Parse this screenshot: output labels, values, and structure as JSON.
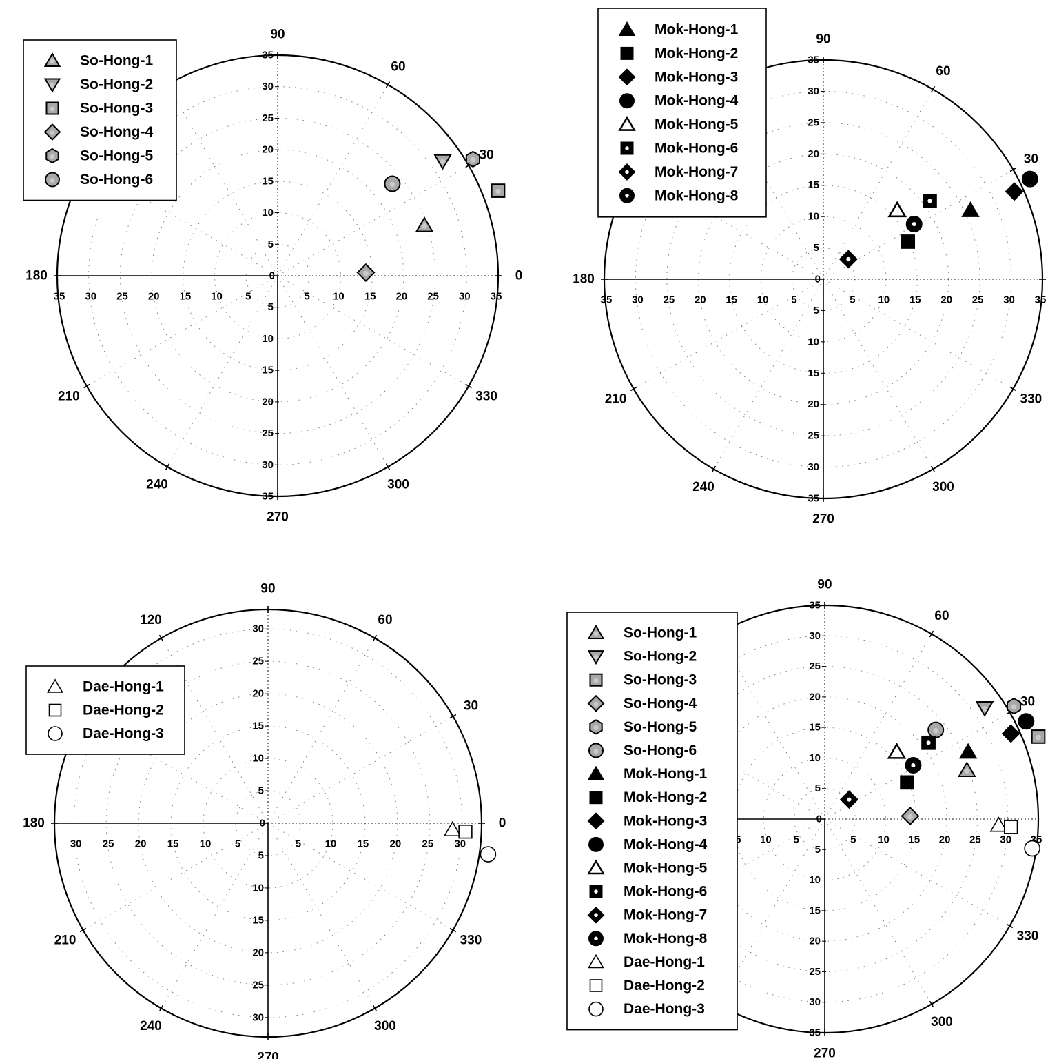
{
  "colors": {
    "ink": "#000000",
    "grey": "#a8a8a8",
    "paper": "#ffffff"
  },
  "marker_styles": {
    "So-Hong-1": {
      "shape": "triangle-up",
      "fill": "grey"
    },
    "So-Hong-2": {
      "shape": "triangle-down",
      "fill": "grey"
    },
    "So-Hong-3": {
      "shape": "square",
      "fill": "grey"
    },
    "So-Hong-4": {
      "shape": "diamond",
      "fill": "grey"
    },
    "So-Hong-5": {
      "shape": "hexagon",
      "fill": "grey"
    },
    "So-Hong-6": {
      "shape": "circle",
      "fill": "grey"
    },
    "Mok-Hong-1": {
      "shape": "triangle-up",
      "fill": "black"
    },
    "Mok-Hong-2": {
      "shape": "square",
      "fill": "black"
    },
    "Mok-Hong-3": {
      "shape": "diamond",
      "fill": "black"
    },
    "Mok-Hong-4": {
      "shape": "circle",
      "fill": "black"
    },
    "Mok-Hong-5": {
      "shape": "triangle-up",
      "fill": "outline-grey"
    },
    "Mok-Hong-6": {
      "shape": "square",
      "fill": "black-dot"
    },
    "Mok-Hong-7": {
      "shape": "diamond",
      "fill": "black-dot"
    },
    "Mok-Hong-8": {
      "shape": "circle",
      "fill": "black-dot"
    },
    "Dae-Hong-1": {
      "shape": "triangle-up",
      "fill": "white"
    },
    "Dae-Hong-2": {
      "shape": "square",
      "fill": "white"
    },
    "Dae-Hong-3": {
      "shape": "circle",
      "fill": "white"
    }
  },
  "chart_data": [
    {
      "type": "scatter",
      "subtype": "polar",
      "max": 35,
      "radial_ticks": [
        5,
        10,
        15,
        20,
        25,
        30,
        35
      ],
      "angle_labels": [
        "90",
        "60",
        "30",
        "0",
        "330",
        "300",
        "270",
        "240",
        "210",
        "180"
      ],
      "grid": true,
      "legend_position": "top-left",
      "series": [
        {
          "name": "So-Hong-1",
          "points": [
            {
              "x": 23.3,
              "y": 8.0
            }
          ]
        },
        {
          "name": "So-Hong-2",
          "points": [
            {
              "x": 26.2,
              "y": 18.2
            }
          ]
        },
        {
          "name": "So-Hong-3",
          "points": [
            {
              "x": 35.0,
              "y": 13.5
            }
          ]
        },
        {
          "name": "So-Hong-4",
          "points": [
            {
              "x": 14.0,
              "y": 0.5
            }
          ]
        },
        {
          "name": "So-Hong-5",
          "points": [
            {
              "x": 31.0,
              "y": 18.5
            }
          ]
        },
        {
          "name": "So-Hong-6",
          "points": [
            {
              "x": 18.2,
              "y": 14.6
            }
          ]
        }
      ]
    },
    {
      "type": "scatter",
      "subtype": "polar",
      "max": 35,
      "radial_ticks": [
        5,
        10,
        15,
        20,
        25,
        30,
        35
      ],
      "angle_labels": [
        "90",
        "60",
        "30",
        "0",
        "330",
        "300",
        "270",
        "240",
        "210",
        "180"
      ],
      "grid": true,
      "legend_position": "top-left",
      "series": [
        {
          "name": "Mok-Hong-1",
          "points": [
            {
              "x": 23.5,
              "y": 11.0
            }
          ]
        },
        {
          "name": "Mok-Hong-2",
          "points": [
            {
              "x": 13.5,
              "y": 6.0
            }
          ]
        },
        {
          "name": "Mok-Hong-3",
          "points": [
            {
              "x": 30.5,
              "y": 14.0
            }
          ]
        },
        {
          "name": "Mok-Hong-4",
          "points": [
            {
              "x": 33.0,
              "y": 16.0
            }
          ]
        },
        {
          "name": "Mok-Hong-5",
          "points": [
            {
              "x": 11.8,
              "y": 11.0
            }
          ]
        },
        {
          "name": "Mok-Hong-6",
          "points": [
            {
              "x": 17.0,
              "y": 12.5
            }
          ]
        },
        {
          "name": "Mok-Hong-7",
          "points": [
            {
              "x": 4.0,
              "y": 3.2
            }
          ]
        },
        {
          "name": "Mok-Hong-8",
          "points": [
            {
              "x": 14.5,
              "y": 8.8
            }
          ]
        }
      ]
    },
    {
      "type": "scatter",
      "subtype": "polar",
      "max": 33,
      "radial_ticks": [
        5,
        10,
        15,
        20,
        25,
        30
      ],
      "angle_labels": [
        "90",
        "120",
        "60",
        "30",
        "0",
        "330",
        "300",
        "270",
        "240",
        "210",
        "180"
      ],
      "grid": true,
      "legend_position": "top-left",
      "series": [
        {
          "name": "Dae-Hong-1",
          "points": [
            {
              "x": 28.5,
              "y": -1.0
            }
          ]
        },
        {
          "name": "Dae-Hong-2",
          "points": [
            {
              "x": 30.5,
              "y": -1.3
            }
          ]
        },
        {
          "name": "Dae-Hong-3",
          "points": [
            {
              "x": 34.0,
              "y": -4.8
            }
          ]
        }
      ]
    },
    {
      "type": "scatter",
      "subtype": "polar",
      "max": 35,
      "radial_ticks": [
        5,
        10,
        15,
        20,
        25,
        30,
        35
      ],
      "angle_labels": [
        "90",
        "60",
        "30",
        "330",
        "300",
        "270"
      ],
      "grid": true,
      "legend_position": "left",
      "series": [
        {
          "name": "So-Hong-1",
          "points": [
            {
              "x": 23.3,
              "y": 8.0
            }
          ]
        },
        {
          "name": "So-Hong-2",
          "points": [
            {
              "x": 26.2,
              "y": 18.2
            }
          ]
        },
        {
          "name": "So-Hong-3",
          "points": [
            {
              "x": 35.0,
              "y": 13.5
            }
          ]
        },
        {
          "name": "So-Hong-4",
          "points": [
            {
              "x": 14.0,
              "y": 0.5
            }
          ]
        },
        {
          "name": "So-Hong-5",
          "points": [
            {
              "x": 31.0,
              "y": 18.5
            }
          ]
        },
        {
          "name": "So-Hong-6",
          "points": [
            {
              "x": 18.2,
              "y": 14.6
            }
          ]
        },
        {
          "name": "Mok-Hong-1",
          "points": [
            {
              "x": 23.5,
              "y": 11.0
            }
          ]
        },
        {
          "name": "Mok-Hong-2",
          "points": [
            {
              "x": 13.5,
              "y": 6.0
            }
          ]
        },
        {
          "name": "Mok-Hong-3",
          "points": [
            {
              "x": 30.5,
              "y": 14.0
            }
          ]
        },
        {
          "name": "Mok-Hong-4",
          "points": [
            {
              "x": 33.0,
              "y": 16.0
            }
          ]
        },
        {
          "name": "Mok-Hong-5",
          "points": [
            {
              "x": 11.8,
              "y": 11.0
            }
          ]
        },
        {
          "name": "Mok-Hong-6",
          "points": [
            {
              "x": 17.0,
              "y": 12.5
            }
          ]
        },
        {
          "name": "Mok-Hong-7",
          "points": [
            {
              "x": 4.0,
              "y": 3.2
            }
          ]
        },
        {
          "name": "Mok-Hong-8",
          "points": [
            {
              "x": 14.5,
              "y": 8.8
            }
          ]
        },
        {
          "name": "Dae-Hong-1",
          "points": [
            {
              "x": 28.5,
              "y": -1.0
            }
          ]
        },
        {
          "name": "Dae-Hong-2",
          "points": [
            {
              "x": 30.5,
              "y": -1.3
            }
          ]
        },
        {
          "name": "Dae-Hong-3",
          "points": [
            {
              "x": 34.0,
              "y": -4.8
            }
          ]
        }
      ]
    }
  ]
}
